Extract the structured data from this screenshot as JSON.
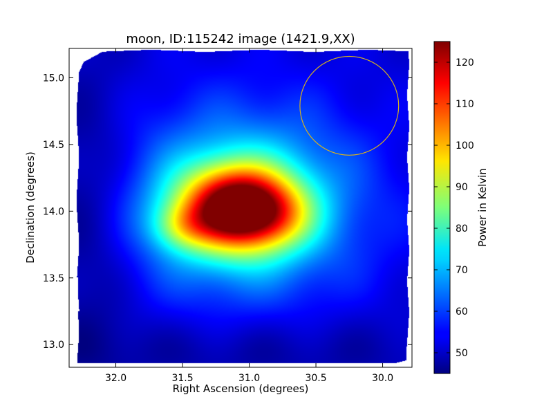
{
  "chart_data": {
    "type": "heatmap",
    "title": "moon, ID:115242 image (1421.9,XX)",
    "xlabel": "Right Ascension (degrees)",
    "ylabel": "Declination (degrees)",
    "xlim": [
      32.35,
      29.78
    ],
    "ylim": [
      12.83,
      15.22
    ],
    "x_ticks": [
      32.0,
      31.5,
      31.0,
      30.5,
      30.0
    ],
    "x_tick_labels": [
      "32.0",
      "31.5",
      "31.0",
      "30.5",
      "30.0"
    ],
    "y_ticks": [
      13.0,
      13.5,
      14.0,
      14.5,
      15.0
    ],
    "y_tick_labels": [
      "13.0",
      "13.5",
      "14.0",
      "14.5",
      "15.0"
    ],
    "colormap": "jet",
    "colorbar": {
      "label": "Power in Kelvin",
      "range": [
        45,
        125
      ],
      "ticks": [
        50,
        60,
        70,
        80,
        90,
        100,
        110,
        120
      ],
      "tick_labels": [
        "50",
        "60",
        "70",
        "80",
        "90",
        "100",
        "110",
        "120"
      ]
    },
    "background_level": 52,
    "peak": {
      "ra": 31.08,
      "dec": 14.02,
      "value": 125
    },
    "components": [
      {
        "ra": 31.08,
        "dec": 14.02,
        "amp": 66,
        "sigma_ra": 0.29,
        "sigma_dec": 0.21
      },
      {
        "ra": 31.5,
        "dec": 13.88,
        "amp": 14,
        "sigma_ra": 0.16,
        "sigma_dec": 0.12
      },
      {
        "ra": 30.78,
        "dec": 13.95,
        "amp": 9,
        "sigma_ra": 0.2,
        "sigma_dec": 0.16
      },
      {
        "ra": 31.05,
        "dec": 14.05,
        "amp": 26,
        "sigma_ra": 0.6,
        "sigma_dec": 0.48
      },
      {
        "ra": 32.2,
        "dec": 14.0,
        "amp": -7,
        "sigma_ra": 0.25,
        "sigma_dec": 0.8
      },
      {
        "ra": 31.0,
        "dec": 12.95,
        "amp": -5,
        "sigma_ra": 1.2,
        "sigma_dec": 0.2
      }
    ],
    "annotations": [
      {
        "type": "circle",
        "ra": 30.25,
        "dec": 14.79,
        "radius_deg": 0.37,
        "color": "#d4b020"
      }
    ]
  }
}
